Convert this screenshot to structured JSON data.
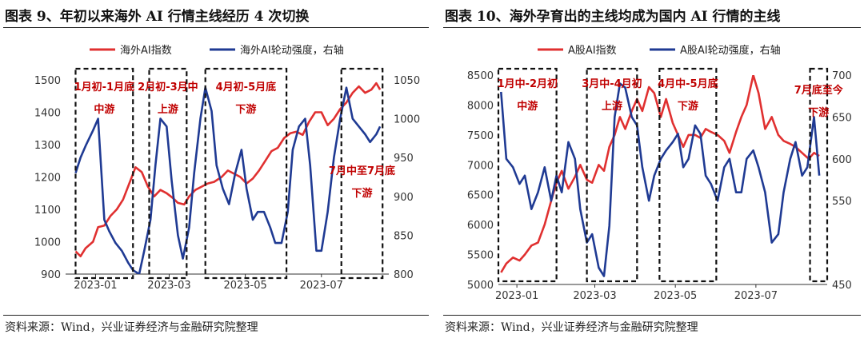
{
  "left": {
    "title": "图表 9、年初以来海外 AI 行情主线经历 4 次切换",
    "source": "资料来源：Wind，兴业证券经济与金融研究院整理",
    "colors": {
      "series1": "#e03030",
      "series2": "#1f3a93",
      "annotation": "#c00000"
    },
    "chart_data": {
      "type": "line",
      "title": "",
      "legend": [
        "海外AI指数",
        "海外AI轮动强度，右轴"
      ],
      "legend_position": "top",
      "x_tick_labels": [
        "2023-01",
        "2023-03",
        "2023-05",
        "2023-07"
      ],
      "x_tick_dates": [
        "2023-01-01",
        "2023-03-01",
        "2023-05-01",
        "2023-07-01"
      ],
      "x_range": [
        "2022-12-08",
        "2023-08-24"
      ],
      "ylim_left": [
        900,
        1500
      ],
      "y_left_ticks": [
        900,
        1000,
        1100,
        1200,
        1300,
        1400,
        1500
      ],
      "ylim_right": [
        800,
        1050
      ],
      "y_right_ticks": [
        800,
        850,
        900,
        950,
        1000,
        1050
      ],
      "series": [
        {
          "name": "海外AI指数",
          "axis": "left",
          "color": "#e03030",
          "x": [
            "2022-12-16",
            "2022-12-20",
            "2022-12-24",
            "2022-12-30",
            "2023-01-03",
            "2023-01-08",
            "2023-01-13",
            "2023-01-18",
            "2023-01-23",
            "2023-01-28",
            "2023-02-02",
            "2023-02-07",
            "2023-02-12",
            "2023-02-17",
            "2023-02-22",
            "2023-02-27",
            "2023-03-04",
            "2023-03-08",
            "2023-03-13",
            "2023-03-17",
            "2023-03-22",
            "2023-03-27",
            "2023-04-01",
            "2023-04-06",
            "2023-04-12",
            "2023-04-17",
            "2023-04-22",
            "2023-04-27",
            "2023-05-02",
            "2023-05-07",
            "2023-05-12",
            "2023-05-17",
            "2023-05-22",
            "2023-05-27",
            "2023-06-01",
            "2023-06-06",
            "2023-06-11",
            "2023-06-16",
            "2023-06-21",
            "2023-06-26",
            "2023-07-01",
            "2023-07-06",
            "2023-07-11",
            "2023-07-16",
            "2023-07-21",
            "2023-07-26",
            "2023-07-31",
            "2023-08-05",
            "2023-08-10",
            "2023-08-14",
            "2023-08-17"
          ],
          "values": [
            970,
            955,
            980,
            1000,
            1045,
            1050,
            1080,
            1100,
            1130,
            1180,
            1230,
            1215,
            1170,
            1140,
            1160,
            1150,
            1135,
            1120,
            1115,
            1140,
            1160,
            1170,
            1180,
            1185,
            1200,
            1220,
            1210,
            1200,
            1180,
            1195,
            1220,
            1250,
            1280,
            1290,
            1320,
            1335,
            1340,
            1330,
            1370,
            1400,
            1400,
            1360,
            1380,
            1410,
            1430,
            1460,
            1480,
            1460,
            1470,
            1490,
            1470
          ]
        },
        {
          "name": "海外AI轮动强度，右轴",
          "axis": "right",
          "color": "#1f3a93",
          "x": [
            "2022-12-16",
            "2022-12-20",
            "2022-12-24",
            "2022-12-30",
            "2023-01-03",
            "2023-01-08",
            "2023-01-12",
            "2023-01-17",
            "2023-01-22",
            "2023-01-27",
            "2023-01-31",
            "2023-02-05",
            "2023-02-09",
            "2023-02-14",
            "2023-02-18",
            "2023-02-22",
            "2023-02-27",
            "2023-03-03",
            "2023-03-08",
            "2023-03-12",
            "2023-03-17",
            "2023-03-21",
            "2023-03-26",
            "2023-03-30",
            "2023-04-04",
            "2023-04-08",
            "2023-04-13",
            "2023-04-18",
            "2023-04-23",
            "2023-04-28",
            "2023-05-02",
            "2023-05-07",
            "2023-05-11",
            "2023-05-16",
            "2023-05-21",
            "2023-05-25",
            "2023-05-30",
            "2023-06-04",
            "2023-06-08",
            "2023-06-13",
            "2023-06-18",
            "2023-06-22",
            "2023-06-27",
            "2023-07-01",
            "2023-07-06",
            "2023-07-11",
            "2023-07-16",
            "2023-07-21",
            "2023-07-26",
            "2023-07-31",
            "2023-08-05",
            "2023-08-09",
            "2023-08-14",
            "2023-08-17"
          ],
          "values": [
            930,
            950,
            965,
            985,
            1000,
            870,
            855,
            840,
            830,
            815,
            805,
            800,
            830,
            870,
            940,
            1000,
            990,
            920,
            850,
            820,
            860,
            930,
            1000,
            1040,
            1010,
            940,
            910,
            890,
            930,
            960,
            910,
            870,
            880,
            880,
            860,
            840,
            840,
            880,
            960,
            990,
            1000,
            940,
            830,
            830,
            880,
            950,
            1000,
            1040,
            1000,
            990,
            980,
            970,
            980,
            990
          ]
        }
      ],
      "annotations": [
        {
          "lines": [
            "1月初-1月底",
            "中游"
          ],
          "x_range": [
            "2022-12-16",
            "2023-01-31"
          ]
        },
        {
          "lines": [
            "2月初-3月中",
            "上游"
          ],
          "x_range": [
            "2023-02-13",
            "2023-03-15"
          ]
        },
        {
          "lines": [
            "4月初-5月底",
            "下游"
          ],
          "x_range": [
            "2023-03-30",
            "2023-06-03"
          ]
        },
        {
          "lines": [
            "7月中至7月底",
            "下游"
          ],
          "x_range": [
            "2023-07-17",
            "2023-08-19"
          ]
        }
      ]
    }
  },
  "right": {
    "title": "图表 10、海外孕育出的主线均成为国内 AI 行情的主线",
    "source": "资料来源：Wind，兴业证券经济与金融研究院整理",
    "colors": {
      "series1": "#e03030",
      "series2": "#1f3a93",
      "annotation": "#c00000"
    },
    "chart_data": {
      "type": "line",
      "title": "",
      "legend": [
        "A股AI指数",
        "A股AI轮动强度，右轴"
      ],
      "legend_position": "top",
      "x_tick_labels": [
        "2023-01",
        "2023-03",
        "2023-05",
        "2023-07"
      ],
      "x_tick_dates": [
        "2023-01-01",
        "2023-03-01",
        "2023-05-01",
        "2023-07-01"
      ],
      "x_range": [
        "2022-12-18",
        "2023-08-24"
      ],
      "ylim_left": [
        5000,
        8500
      ],
      "y_left_ticks": [
        5000,
        5500,
        6000,
        6500,
        7000,
        7500,
        8000,
        8500
      ],
      "ylim_right": [
        450,
        700
      ],
      "y_right_ticks": [
        450,
        500,
        550,
        600,
        650,
        700
      ],
      "y_right_tick_labels": [
        "450",
        "",
        "550",
        "600",
        "650",
        "700"
      ],
      "series": [
        {
          "name": "A股AI指数",
          "axis": "left",
          "color": "#e03030",
          "x": [
            "2022-12-20",
            "2022-12-24",
            "2022-12-29",
            "2023-01-03",
            "2023-01-07",
            "2023-01-12",
            "2023-01-17",
            "2023-01-22",
            "2023-01-27",
            "2023-01-31",
            "2023-02-04",
            "2023-02-09",
            "2023-02-14",
            "2023-02-18",
            "2023-02-23",
            "2023-02-27",
            "2023-03-04",
            "2023-03-08",
            "2023-03-12",
            "2023-03-16",
            "2023-03-20",
            "2023-03-24",
            "2023-03-29",
            "2023-04-02",
            "2023-04-06",
            "2023-04-11",
            "2023-04-15",
            "2023-04-20",
            "2023-04-24",
            "2023-04-29",
            "2023-05-03",
            "2023-05-07",
            "2023-05-11",
            "2023-05-16",
            "2023-05-20",
            "2023-05-24",
            "2023-05-28",
            "2023-06-02",
            "2023-06-07",
            "2023-06-11",
            "2023-06-16",
            "2023-06-20",
            "2023-06-24",
            "2023-06-29",
            "2023-07-03",
            "2023-07-08",
            "2023-07-13",
            "2023-07-18",
            "2023-07-22",
            "2023-07-27",
            "2023-07-31",
            "2023-08-05",
            "2023-08-10",
            "2023-08-14",
            "2023-08-18"
          ],
          "values": [
            5200,
            5350,
            5450,
            5400,
            5500,
            5650,
            5700,
            6000,
            6400,
            6700,
            6900,
            6600,
            6800,
            7000,
            6750,
            6700,
            7000,
            6900,
            7300,
            7500,
            7800,
            7600,
            7900,
            8100,
            7900,
            8300,
            8200,
            7800,
            8100,
            7700,
            7500,
            7300,
            7500,
            7500,
            7450,
            7600,
            7550,
            7500,
            7400,
            7200,
            7550,
            7800,
            8000,
            8500,
            8200,
            7600,
            7800,
            7500,
            7400,
            7350,
            7300,
            7200,
            7100,
            7200,
            7150
          ]
        },
        {
          "name": "A股AI轮动强度，右轴",
          "axis": "right",
          "color": "#1f3a93",
          "x": [
            "2022-12-20",
            "2022-12-24",
            "2022-12-29",
            "2023-01-03",
            "2023-01-07",
            "2023-01-12",
            "2023-01-17",
            "2023-01-22",
            "2023-01-27",
            "2023-01-31",
            "2023-02-04",
            "2023-02-09",
            "2023-02-14",
            "2023-02-18",
            "2023-02-23",
            "2023-02-27",
            "2023-03-04",
            "2023-03-08",
            "2023-03-12",
            "2023-03-16",
            "2023-03-20",
            "2023-03-24",
            "2023-03-29",
            "2023-04-02",
            "2023-04-06",
            "2023-04-11",
            "2023-04-15",
            "2023-04-20",
            "2023-04-24",
            "2023-04-29",
            "2023-05-03",
            "2023-05-07",
            "2023-05-11",
            "2023-05-16",
            "2023-05-20",
            "2023-05-24",
            "2023-05-28",
            "2023-06-02",
            "2023-06-07",
            "2023-06-11",
            "2023-06-16",
            "2023-06-20",
            "2023-06-24",
            "2023-06-29",
            "2023-07-03",
            "2023-07-08",
            "2023-07-13",
            "2023-07-18",
            "2023-07-22",
            "2023-07-27",
            "2023-07-31",
            "2023-08-05",
            "2023-08-09",
            "2023-08-14",
            "2023-08-18"
          ],
          "values": [
            680,
            600,
            590,
            570,
            580,
            540,
            560,
            590,
            550,
            580,
            560,
            620,
            600,
            540,
            500,
            510,
            470,
            460,
            520,
            650,
            690,
            685,
            650,
            640,
            590,
            550,
            580,
            600,
            610,
            620,
            630,
            590,
            600,
            640,
            630,
            580,
            570,
            550,
            590,
            600,
            560,
            560,
            600,
            610,
            590,
            560,
            500,
            510,
            560,
            600,
            620,
            580,
            590,
            650,
            580
          ]
        }
      ],
      "annotations": [
        {
          "lines": [
            "1月中-2月初",
            "中游"
          ],
          "x_range": [
            "2022-12-18",
            "2023-01-31"
          ]
        },
        {
          "lines": [
            "3月中-4月初",
            "上游"
          ],
          "x_range": [
            "2023-02-23",
            "2023-04-02"
          ]
        },
        {
          "lines": [
            "4月中-5月底",
            "下游"
          ],
          "x_range": [
            "2023-04-19",
            "2023-06-01"
          ]
        },
        {
          "lines": [
            "7月底至今",
            "下游"
          ],
          "x_range": [
            "2023-08-11",
            "2023-08-24"
          ]
        }
      ]
    }
  }
}
